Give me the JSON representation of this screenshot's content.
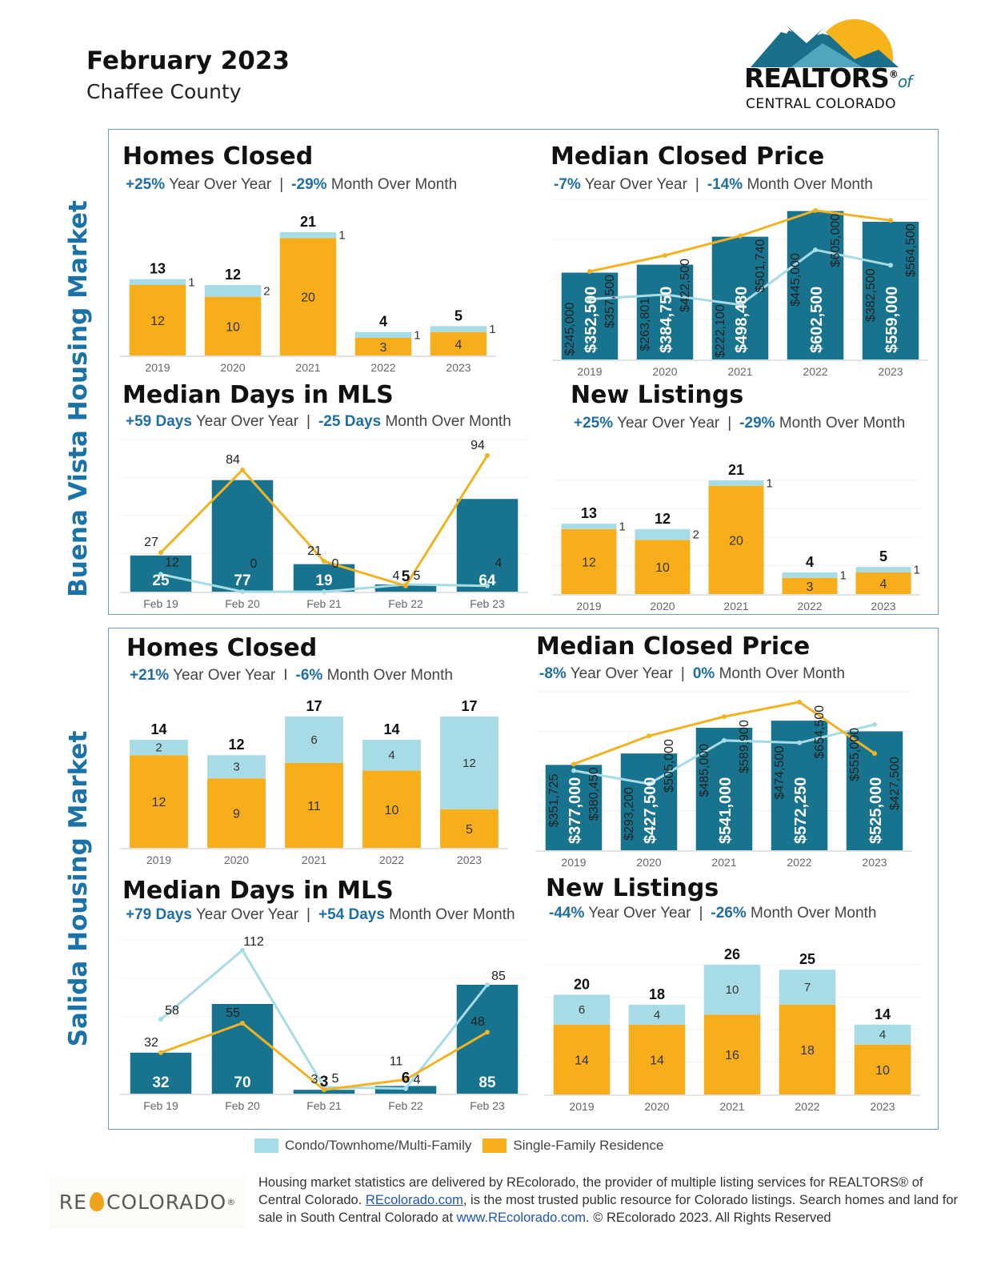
{
  "header": {
    "title": "February 2023",
    "subtitle": "Chaffee County"
  },
  "logo": {
    "name": "REALTORS",
    "reg": "®",
    "of": "of",
    "line2": "CENTRAL COLORADO"
  },
  "colors": {
    "condo": "#a7dce6",
    "sfr": "#f8ae1b",
    "total_bar": "#18738f",
    "sfr_line": "#f0b323",
    "condo_line": "#a7dce6",
    "accent": "#1f6ea3"
  },
  "sections": [
    {
      "label": "Buena Vista Housing Market",
      "panels": {
        "homes_closed": {
          "title": "Homes Closed",
          "yoy": "+25%",
          "yoy_label": "Year Over Year",
          "sep": "|",
          "mom": "-29%",
          "mom_label": "Month Over Month"
        },
        "median_price": {
          "title": "Median Closed Price",
          "yoy": "-7%",
          "yoy_label": "Year Over Year",
          "sep": "|",
          "mom": "-14%",
          "mom_label": "Month Over Month"
        },
        "days_mls": {
          "title": "Median Days in MLS",
          "yoy": "+59 Days",
          "yoy_label": "Year Over Year",
          "sep": "|",
          "mom": "-25 Days",
          "mom_label": "Month Over Month"
        },
        "new_listings": {
          "title": "New Listings",
          "yoy": "+25%",
          "yoy_label": "Year Over Year",
          "sep": "|",
          "mom": "-29%",
          "mom_label": "Month Over Month"
        }
      }
    },
    {
      "label": "Salida Housing Market",
      "panels": {
        "homes_closed": {
          "title": "Homes Closed",
          "yoy": "+21%",
          "yoy_label": "Year Over Year",
          "sep": "I",
          "mom": "-6%",
          "mom_label": "Month Over Month"
        },
        "median_price": {
          "title": "Median Closed Price",
          "yoy": "-8%",
          "yoy_label": "Year Over Year",
          "sep": "|",
          "mom": "0%",
          "mom_label": "Month Over Month"
        },
        "days_mls": {
          "title": "Median Days in MLS",
          "yoy": "+79 Days",
          "yoy_label": "Year Over Year",
          "sep": "|",
          "mom": "+54 Days",
          "mom_label": "Month Over Month"
        },
        "new_listings": {
          "title": "New Listings",
          "yoy": "-44%",
          "yoy_label": "Year Over Year",
          "sep": "|",
          "mom": "-26%",
          "mom_label": "Month Over Month"
        }
      }
    }
  ],
  "chart_data": [
    {
      "id": "bv_homes",
      "type": "bar",
      "stacked": true,
      "categories": [
        "2019",
        "2020",
        "2021",
        "2022",
        "2023"
      ],
      "series": [
        {
          "name": "Single-Family Residence",
          "values": [
            12,
            10,
            20,
            3,
            4
          ]
        },
        {
          "name": "Condo/Townhome/Multi-Family",
          "values": [
            1,
            2,
            1,
            1,
            1
          ]
        }
      ],
      "totals": [
        13,
        12,
        21,
        4,
        5
      ],
      "ylim": [
        0,
        21
      ],
      "grid": false
    },
    {
      "id": "bv_price",
      "type": "bar+line",
      "categories": [
        "2019",
        "2020",
        "2021",
        "2022",
        "2023"
      ],
      "bars": {
        "values": [
          352500,
          384750,
          498480,
          602500,
          559000
        ],
        "labels": [
          "$352,500",
          "$384,750",
          "$498,480",
          "$602,500",
          "$559,000"
        ]
      },
      "series": [
        {
          "name": "Single-Family Residence",
          "values": [
            357500,
            422500,
            501740,
            605000,
            564500
          ],
          "labels": [
            "$357,500",
            "$422,500",
            "$501,740",
            "$605,000",
            "$564,500"
          ]
        },
        {
          "name": "Condo/Townhome/Multi-Family",
          "values": [
            245000,
            263801,
            222100,
            445000,
            382500
          ],
          "labels": [
            "$245,000",
            "$263,801",
            "$222,100",
            "$445,000",
            "$382,500"
          ]
        }
      ],
      "ylim": [
        0,
        650000
      ],
      "grid": true
    },
    {
      "id": "bv_dom",
      "type": "bar+line",
      "categories": [
        "Feb 19",
        "Feb 20",
        "Feb 21",
        "Feb 22",
        "Feb 23"
      ],
      "bars": {
        "values": [
          25,
          77,
          19,
          5,
          64
        ],
        "labels": [
          "25",
          "77",
          "19",
          "5",
          "64"
        ]
      },
      "series": [
        {
          "name": "Single-Family Residence",
          "values": [
            27,
            84,
            21,
            4,
            94
          ],
          "labels": [
            "27",
            "84",
            "21",
            "4",
            "94"
          ]
        },
        {
          "name": "Condo/Townhome/Multi-Family",
          "values": [
            12,
            0,
            0,
            5,
            4
          ],
          "labels": [
            "12",
            "0",
            "0",
            "5",
            "4"
          ]
        }
      ],
      "ylim": [
        0,
        105
      ],
      "grid": true
    },
    {
      "id": "bv_listings",
      "type": "bar",
      "stacked": true,
      "categories": [
        "2019",
        "2020",
        "2021",
        "2022",
        "2023"
      ],
      "series": [
        {
          "name": "Single-Family Residence",
          "values": [
            12,
            10,
            20,
            3,
            4
          ]
        },
        {
          "name": "Condo/Townhome/Multi-Family",
          "values": [
            1,
            2,
            1,
            1,
            1
          ]
        }
      ],
      "totals": [
        13,
        12,
        21,
        4,
        5
      ],
      "ylim": [
        0,
        21
      ],
      "grid": true
    },
    {
      "id": "sa_homes",
      "type": "bar",
      "stacked": true,
      "categories": [
        "2019",
        "2020",
        "2021",
        "2022",
        "2023"
      ],
      "series": [
        {
          "name": "Single-Family Residence",
          "values": [
            12,
            9,
            11,
            10,
            5
          ]
        },
        {
          "name": "Condo/Townhome/Multi-Family",
          "values": [
            2,
            3,
            6,
            4,
            12
          ]
        }
      ],
      "totals": [
        14,
        12,
        17,
        14,
        17
      ],
      "ylim": [
        0,
        17
      ],
      "grid": false
    },
    {
      "id": "sa_price",
      "type": "bar+line",
      "categories": [
        "2019",
        "2020",
        "2021",
        "2022",
        "2023"
      ],
      "bars": {
        "values": [
          377000,
          427500,
          541000,
          572250,
          525000
        ],
        "labels": [
          "$377,000",
          "$427,500",
          "$541,000",
          "$572,250",
          "$525,000"
        ]
      },
      "series": [
        {
          "name": "Single-Family Residence",
          "values": [
            380450,
            505000,
            589900,
            654500,
            427500
          ],
          "labels": [
            "$380,450",
            "$505,000",
            "$589,900",
            "$654,500",
            "$427,500"
          ]
        },
        {
          "name": "Condo/Townhome/Multi-Family",
          "values": [
            351725,
            293200,
            485000,
            474500,
            555000
          ],
          "labels": [
            "$351,725",
            "$293,200",
            "$485,000",
            "$474,500",
            "$555,000"
          ]
        }
      ],
      "ylim": [
        0,
        700000
      ],
      "grid": true
    },
    {
      "id": "sa_dom",
      "type": "bar+line",
      "categories": [
        "Feb 19",
        "Feb 20",
        "Feb 21",
        "Feb 22",
        "Feb 23"
      ],
      "bars": {
        "values": [
          32,
          70,
          3,
          6,
          85
        ],
        "labels": [
          "32",
          "70",
          "3",
          "6",
          "85"
        ]
      },
      "series": [
        {
          "name": "Single-Family Residence",
          "values": [
            32,
            55,
            3,
            11,
            48
          ],
          "labels": [
            "32",
            "55",
            "3",
            "11",
            "48"
          ]
        },
        {
          "name": "Condo/Townhome/Multi-Family",
          "values": [
            58,
            112,
            5,
            4,
            85
          ],
          "labels": [
            "58",
            "112",
            "5",
            "4",
            "85"
          ]
        }
      ],
      "ylim": [
        0,
        120
      ],
      "grid": true
    },
    {
      "id": "sa_listings",
      "type": "bar",
      "stacked": true,
      "categories": [
        "2019",
        "2020",
        "2021",
        "2022",
        "2023"
      ],
      "series": [
        {
          "name": "Single-Family Residence",
          "values": [
            14,
            14,
            16,
            18,
            10
          ]
        },
        {
          "name": "Condo/Townhome/Multi-Family",
          "values": [
            6,
            4,
            10,
            7,
            4
          ]
        }
      ],
      "totals": [
        20,
        18,
        26,
        25,
        14
      ],
      "ylim": [
        0,
        26
      ],
      "grid": true
    }
  ],
  "legend": {
    "items": [
      {
        "label": "Condo/Townhome/Multi-Family"
      },
      {
        "label": "Single-Family Residence"
      }
    ]
  },
  "footer": {
    "logo": {
      "left": "RE",
      "right": "COLORADO",
      "reg": "®"
    },
    "text1": "Housing market statistics are delivered by REcolorado, the provider of multiple listing services for REALTORS® of Central Colorado. ",
    "link1": "REcolorado.com",
    "text2": ", is the most trusted public resource for Colorado listings. Search homes and land for sale in South Central Colorado at ",
    "link2": "www.REcolorado.com",
    "text3": ".  © REcolorado 2023. All Rights Reserved"
  }
}
